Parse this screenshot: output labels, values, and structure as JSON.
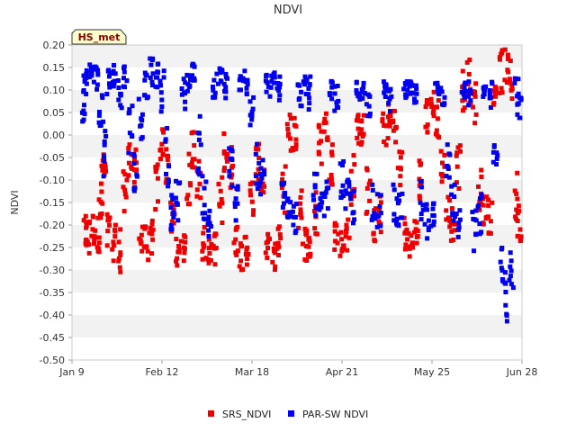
{
  "chart_data": {
    "type": "scatter",
    "title": "NDVI",
    "xlabel": "",
    "ylabel": "NDVI",
    "badge": "HS_met",
    "ylim": [
      -0.5,
      0.2
    ],
    "yticks": [
      0.2,
      0.15,
      0.1,
      0.05,
      0.0,
      -0.05,
      -0.1,
      -0.15,
      -0.2,
      -0.25,
      -0.3,
      -0.35,
      -0.4,
      -0.45,
      -0.5
    ],
    "xlim": [
      0,
      170
    ],
    "xticks": [
      {
        "value": 0,
        "label": "Jan 9"
      },
      {
        "value": 34,
        "label": "Feb 12"
      },
      {
        "value": 68,
        "label": "Mar 18"
      },
      {
        "value": 102,
        "label": "Apr 21"
      },
      {
        "value": 136,
        "label": "May 25"
      },
      {
        "value": 170,
        "label": "Jun 28"
      }
    ],
    "grid": "horizontal bands",
    "legend": "bottom-center",
    "series": [
      {
        "name": "SRS_NDVI",
        "color": "#ee0000",
        "daily": [
          [
            5,
            -0.22,
            0.04
          ],
          [
            6,
            -0.23,
            0.05
          ],
          [
            8,
            -0.21,
            0.04
          ],
          [
            10,
            -0.22,
            0.04
          ],
          [
            11,
            -0.15,
            0.06
          ],
          [
            12,
            -0.08,
            0.04
          ],
          [
            14,
            -0.22,
            0.05
          ],
          [
            16,
            -0.24,
            0.04
          ],
          [
            18,
            -0.26,
            0.06
          ],
          [
            20,
            -0.12,
            0.05
          ],
          [
            22,
            -0.06,
            0.04
          ],
          [
            24,
            -0.08,
            0.05
          ],
          [
            26,
            -0.23,
            0.03
          ],
          [
            28,
            -0.24,
            0.04
          ],
          [
            30,
            -0.23,
            0.04
          ],
          [
            32,
            -0.12,
            0.06
          ],
          [
            34,
            -0.02,
            0.04
          ],
          [
            36,
            -0.06,
            0.05
          ],
          [
            38,
            -0.19,
            0.04
          ],
          [
            40,
            -0.26,
            0.03
          ],
          [
            42,
            -0.25,
            0.04
          ],
          [
            44,
            -0.1,
            0.06
          ],
          [
            46,
            -0.03,
            0.05
          ],
          [
            48,
            -0.1,
            0.05
          ],
          [
            50,
            -0.24,
            0.04
          ],
          [
            52,
            -0.26,
            0.03
          ],
          [
            54,
            -0.25,
            0.04
          ],
          [
            56,
            -0.15,
            0.06
          ],
          [
            58,
            -0.03,
            0.05
          ],
          [
            60,
            -0.07,
            0.05
          ],
          [
            62,
            -0.23,
            0.04
          ],
          [
            64,
            -0.27,
            0.03
          ],
          [
            66,
            -0.25,
            0.04
          ],
          [
            68,
            -0.14,
            0.05
          ],
          [
            70,
            -0.06,
            0.04
          ],
          [
            72,
            -0.1,
            0.05
          ],
          [
            74,
            -0.25,
            0.03
          ],
          [
            76,
            -0.27,
            0.03
          ],
          [
            78,
            -0.24,
            0.04
          ],
          [
            80,
            -0.12,
            0.06
          ],
          [
            82,
            0.01,
            0.05
          ],
          [
            84,
            0.0,
            0.04
          ],
          [
            86,
            -0.15,
            0.06
          ],
          [
            88,
            -0.24,
            0.04
          ],
          [
            90,
            -0.25,
            0.03
          ],
          [
            92,
            -0.18,
            0.06
          ],
          [
            94,
            -0.02,
            0.05
          ],
          [
            96,
            0.02,
            0.04
          ],
          [
            98,
            -0.06,
            0.05
          ],
          [
            100,
            -0.22,
            0.04
          ],
          [
            102,
            -0.24,
            0.03
          ],
          [
            104,
            -0.22,
            0.04
          ],
          [
            106,
            -0.1,
            0.06
          ],
          [
            108,
            0.02,
            0.04
          ],
          [
            110,
            0.01,
            0.04
          ],
          [
            112,
            -0.12,
            0.06
          ],
          [
            114,
            -0.2,
            0.04
          ],
          [
            116,
            -0.18,
            0.05
          ],
          [
            118,
            0.01,
            0.04
          ],
          [
            120,
            0.03,
            0.04
          ],
          [
            122,
            0.02,
            0.04
          ],
          [
            124,
            -0.08,
            0.06
          ],
          [
            126,
            -0.22,
            0.04
          ],
          [
            128,
            -0.24,
            0.03
          ],
          [
            130,
            -0.22,
            0.04
          ],
          [
            132,
            -0.1,
            0.05
          ],
          [
            134,
            0.04,
            0.04
          ],
          [
            136,
            0.06,
            0.04
          ],
          [
            138,
            0.04,
            0.05
          ],
          [
            140,
            -0.08,
            0.06
          ],
          [
            142,
            -0.17,
            0.04
          ],
          [
            144,
            -0.2,
            0.04
          ],
          [
            146,
            -0.06,
            0.06
          ],
          [
            148,
            0.1,
            0.05
          ],
          [
            150,
            0.12,
            0.05
          ],
          [
            152,
            0.07,
            0.05
          ],
          [
            154,
            -0.12,
            0.05
          ],
          [
            156,
            -0.16,
            0.04
          ],
          [
            158,
            -0.18,
            0.04
          ],
          [
            160,
            0.1,
            0.05
          ],
          [
            162,
            0.14,
            0.05
          ],
          [
            164,
            0.15,
            0.04
          ],
          [
            166,
            0.12,
            0.05
          ],
          [
            168,
            -0.14,
            0.06
          ],
          [
            169,
            -0.2,
            0.04
          ]
        ]
      },
      {
        "name": "PAR-SW NDVI",
        "color": "#0000ee",
        "daily": [
          [
            4,
            0.08,
            0.05
          ],
          [
            5,
            0.12,
            0.03
          ],
          [
            7,
            0.14,
            0.02
          ],
          [
            9,
            0.13,
            0.03
          ],
          [
            11,
            0.05,
            0.06
          ],
          [
            12,
            -0.04,
            0.06
          ],
          [
            14,
            0.12,
            0.03
          ],
          [
            16,
            0.13,
            0.03
          ],
          [
            18,
            0.1,
            0.04
          ],
          [
            20,
            0.13,
            0.03
          ],
          [
            22,
            0.02,
            0.06
          ],
          [
            24,
            -0.08,
            0.05
          ],
          [
            26,
            0.05,
            0.06
          ],
          [
            28,
            0.11,
            0.03
          ],
          [
            30,
            0.14,
            0.03
          ],
          [
            32,
            0.13,
            0.03
          ],
          [
            34,
            0.1,
            0.05
          ],
          [
            36,
            -0.05,
            0.07
          ],
          [
            38,
            -0.17,
            0.04
          ],
          [
            40,
            -0.14,
            0.05
          ],
          [
            42,
            0.09,
            0.04
          ],
          [
            44,
            0.12,
            0.03
          ],
          [
            46,
            0.14,
            0.02
          ],
          [
            48,
            -0.02,
            0.07
          ],
          [
            50,
            -0.14,
            0.05
          ],
          [
            52,
            -0.2,
            0.04
          ],
          [
            54,
            0.1,
            0.04
          ],
          [
            56,
            0.13,
            0.02
          ],
          [
            58,
            0.1,
            0.04
          ],
          [
            60,
            -0.06,
            0.06
          ],
          [
            62,
            -0.15,
            0.05
          ],
          [
            64,
            0.1,
            0.04
          ],
          [
            66,
            0.12,
            0.03
          ],
          [
            68,
            0.06,
            0.05
          ],
          [
            70,
            -0.08,
            0.06
          ],
          [
            72,
            -0.1,
            0.05
          ],
          [
            74,
            0.11,
            0.03
          ],
          [
            76,
            0.12,
            0.02
          ],
          [
            78,
            0.1,
            0.04
          ],
          [
            80,
            -0.12,
            0.05
          ],
          [
            82,
            -0.15,
            0.04
          ],
          [
            84,
            -0.18,
            0.04
          ],
          [
            86,
            0.09,
            0.03
          ],
          [
            88,
            0.11,
            0.02
          ],
          [
            90,
            0.09,
            0.04
          ],
          [
            92,
            -0.13,
            0.05
          ],
          [
            94,
            -0.17,
            0.04
          ],
          [
            96,
            -0.14,
            0.04
          ],
          [
            98,
            0.1,
            0.02
          ],
          [
            100,
            0.08,
            0.03
          ],
          [
            102,
            -0.1,
            0.05
          ],
          [
            104,
            -0.14,
            0.04
          ],
          [
            106,
            -0.16,
            0.04
          ],
          [
            108,
            0.09,
            0.03
          ],
          [
            110,
            0.1,
            0.02
          ],
          [
            112,
            0.07,
            0.03
          ],
          [
            114,
            -0.14,
            0.05
          ],
          [
            116,
            -0.17,
            0.04
          ],
          [
            118,
            0.1,
            0.02
          ],
          [
            120,
            0.08,
            0.03
          ],
          [
            122,
            -0.15,
            0.05
          ],
          [
            124,
            -0.17,
            0.04
          ],
          [
            126,
            0.1,
            0.02
          ],
          [
            128,
            0.1,
            0.02
          ],
          [
            130,
            0.08,
            0.03
          ],
          [
            132,
            -0.15,
            0.05
          ],
          [
            134,
            -0.19,
            0.04
          ],
          [
            136,
            -0.18,
            0.04
          ],
          [
            138,
            0.1,
            0.02
          ],
          [
            140,
            0.09,
            0.03
          ],
          [
            142,
            -0.05,
            0.05
          ],
          [
            144,
            -0.15,
            0.05
          ],
          [
            146,
            -0.2,
            0.04
          ],
          [
            148,
            0.1,
            0.02
          ],
          [
            150,
            0.09,
            0.03
          ],
          [
            152,
            -0.22,
            0.06
          ],
          [
            154,
            -0.18,
            0.05
          ],
          [
            156,
            0.1,
            0.02
          ],
          [
            158,
            0.09,
            0.03
          ],
          [
            160,
            -0.06,
            0.05
          ],
          [
            162,
            -0.28,
            0.05
          ],
          [
            164,
            -0.36,
            0.06
          ],
          [
            166,
            -0.3,
            0.05
          ],
          [
            168,
            0.1,
            0.03
          ],
          [
            169,
            0.06,
            0.03
          ]
        ]
      }
    ]
  }
}
